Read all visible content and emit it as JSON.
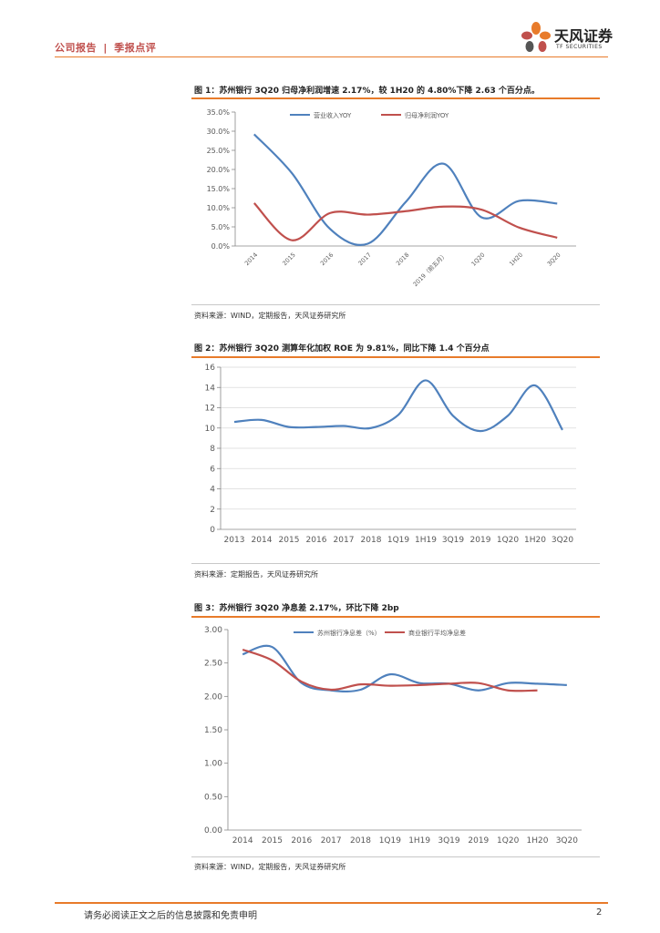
{
  "header": {
    "section": "公司报告",
    "separator": "|",
    "category": "季报点评"
  },
  "logo": {
    "name_cn": "天风证券",
    "name_en": "TF SECURITIES"
  },
  "footer": {
    "disclaimer": "请务必阅读正文之后的信息披露和免责申明",
    "page": "2"
  },
  "colors": {
    "blue": "#4f81bd",
    "red": "#c0504d",
    "orange": "#e87b2a"
  },
  "chart_data": [
    {
      "type": "line",
      "title": "图 1：苏州银行 3Q20 归母净利润增速 2.17%，较 1H20 的 4.80%下降 2.63 个百分点。",
      "source": "资料来源：WIND，定期报告，天风证券研究所",
      "categories": [
        "2014",
        "2015",
        "2016",
        "2017",
        "2018",
        "2019（前五月）",
        "1Q20",
        "1H20",
        "3Q20"
      ],
      "series": [
        {
          "name": "营业收入YOY",
          "values": [
            29.2,
            19.0,
            4.5,
            0.6,
            11.5,
            21.5,
            7.5,
            11.8,
            11.1
          ]
        },
        {
          "name": "归母净利润YOY",
          "values": [
            11.2,
            1.5,
            8.6,
            8.2,
            9.1,
            10.3,
            9.5,
            4.8,
            2.17
          ]
        }
      ],
      "y_ticks": [
        "0.0%",
        "5.0%",
        "10.0%",
        "15.0%",
        "20.0%",
        "25.0%",
        "30.0%",
        "35.0%"
      ],
      "ylim": [
        0,
        35
      ]
    },
    {
      "type": "line",
      "title": "图 2：苏州银行 3Q20 测算年化加权 ROE 为 9.81%，同比下降 1.4 个百分点",
      "source": "资料来源：定期报告，天风证券研究所",
      "categories": [
        "2013",
        "2014",
        "2015",
        "2016",
        "2017",
        "2018",
        "1Q19",
        "1H19",
        "3Q19",
        "2019",
        "1Q20",
        "1H20",
        "3Q20"
      ],
      "series": [
        {
          "name": "ROE",
          "values": [
            10.6,
            10.8,
            10.1,
            10.1,
            10.2,
            10.0,
            11.3,
            14.7,
            11.2,
            9.7,
            11.2,
            14.2,
            9.81
          ]
        }
      ],
      "y_ticks": [
        "0",
        "2",
        "4",
        "6",
        "8",
        "10",
        "12",
        "14",
        "16"
      ],
      "ylim": [
        0,
        16
      ]
    },
    {
      "type": "line",
      "title": "图 3：苏州银行 3Q20 净息差 2.17%，环比下降 2bp",
      "source": "资料来源：WIND，定期报告，天风证券研究所",
      "categories": [
        "2014",
        "2015",
        "2016",
        "2017",
        "2018",
        "1Q19",
        "1H19",
        "3Q19",
        "2019",
        "1Q20",
        "1H20",
        "3Q20"
      ],
      "series": [
        {
          "name": "苏州银行净息差（%）",
          "values": [
            2.63,
            2.74,
            2.2,
            2.09,
            2.1,
            2.33,
            2.2,
            2.19,
            2.09,
            2.2,
            2.19,
            2.17
          ]
        },
        {
          "name": "商业银行平均净息差",
          "values": [
            2.7,
            2.54,
            2.22,
            2.1,
            2.18,
            2.16,
            2.17,
            2.19,
            2.2,
            2.09,
            2.09,
            null
          ]
        }
      ],
      "y_ticks": [
        "0.00",
        "0.50",
        "1.00",
        "1.50",
        "2.00",
        "2.50",
        "3.00"
      ],
      "ylim": [
        0,
        3
      ]
    }
  ]
}
